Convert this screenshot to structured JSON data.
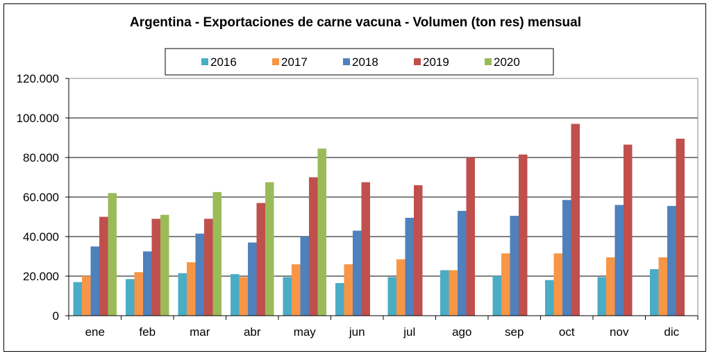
{
  "chart_data": {
    "type": "bar",
    "title": "Argentina - Exportaciones de carne vacuna - Volumen (ton res) mensual",
    "xlabel": "",
    "ylabel": "",
    "categories": [
      "ene",
      "feb",
      "mar",
      "abr",
      "may",
      "jun",
      "jul",
      "ago",
      "sep",
      "oct",
      "nov",
      "dic"
    ],
    "ylim": [
      0,
      120000
    ],
    "yticks": [
      0,
      20000,
      40000,
      60000,
      80000,
      100000,
      120000
    ],
    "ytick_labels": [
      "0",
      "20.000",
      "40.000",
      "60.000",
      "80.000",
      "100.000",
      "120.000"
    ],
    "grid": true,
    "legend_position": "top",
    "series": [
      {
        "name": "2016",
        "color": "#4BACC6",
        "values": [
          17000,
          18500,
          21500,
          21000,
          19500,
          16500,
          19500,
          23000,
          20000,
          18000,
          19500,
          23500
        ]
      },
      {
        "name": "2017",
        "color": "#F79646",
        "values": [
          20000,
          22000,
          27000,
          19500,
          26000,
          26000,
          28500,
          23000,
          31500,
          31500,
          29500,
          29500
        ]
      },
      {
        "name": "2018",
        "color": "#4F81BD",
        "values": [
          35000,
          32500,
          41500,
          37000,
          40000,
          43000,
          49500,
          53000,
          50500,
          58500,
          56000,
          55500
        ]
      },
      {
        "name": "2019",
        "color": "#C0504D",
        "values": [
          50000,
          49000,
          49000,
          57000,
          70000,
          67500,
          66000,
          80000,
          81500,
          97000,
          86500,
          89500
        ]
      },
      {
        "name": "2020",
        "color": "#9BBB59",
        "values": [
          62000,
          51000,
          62500,
          67500,
          84500,
          null,
          null,
          null,
          null,
          null,
          null,
          null
        ]
      }
    ]
  }
}
